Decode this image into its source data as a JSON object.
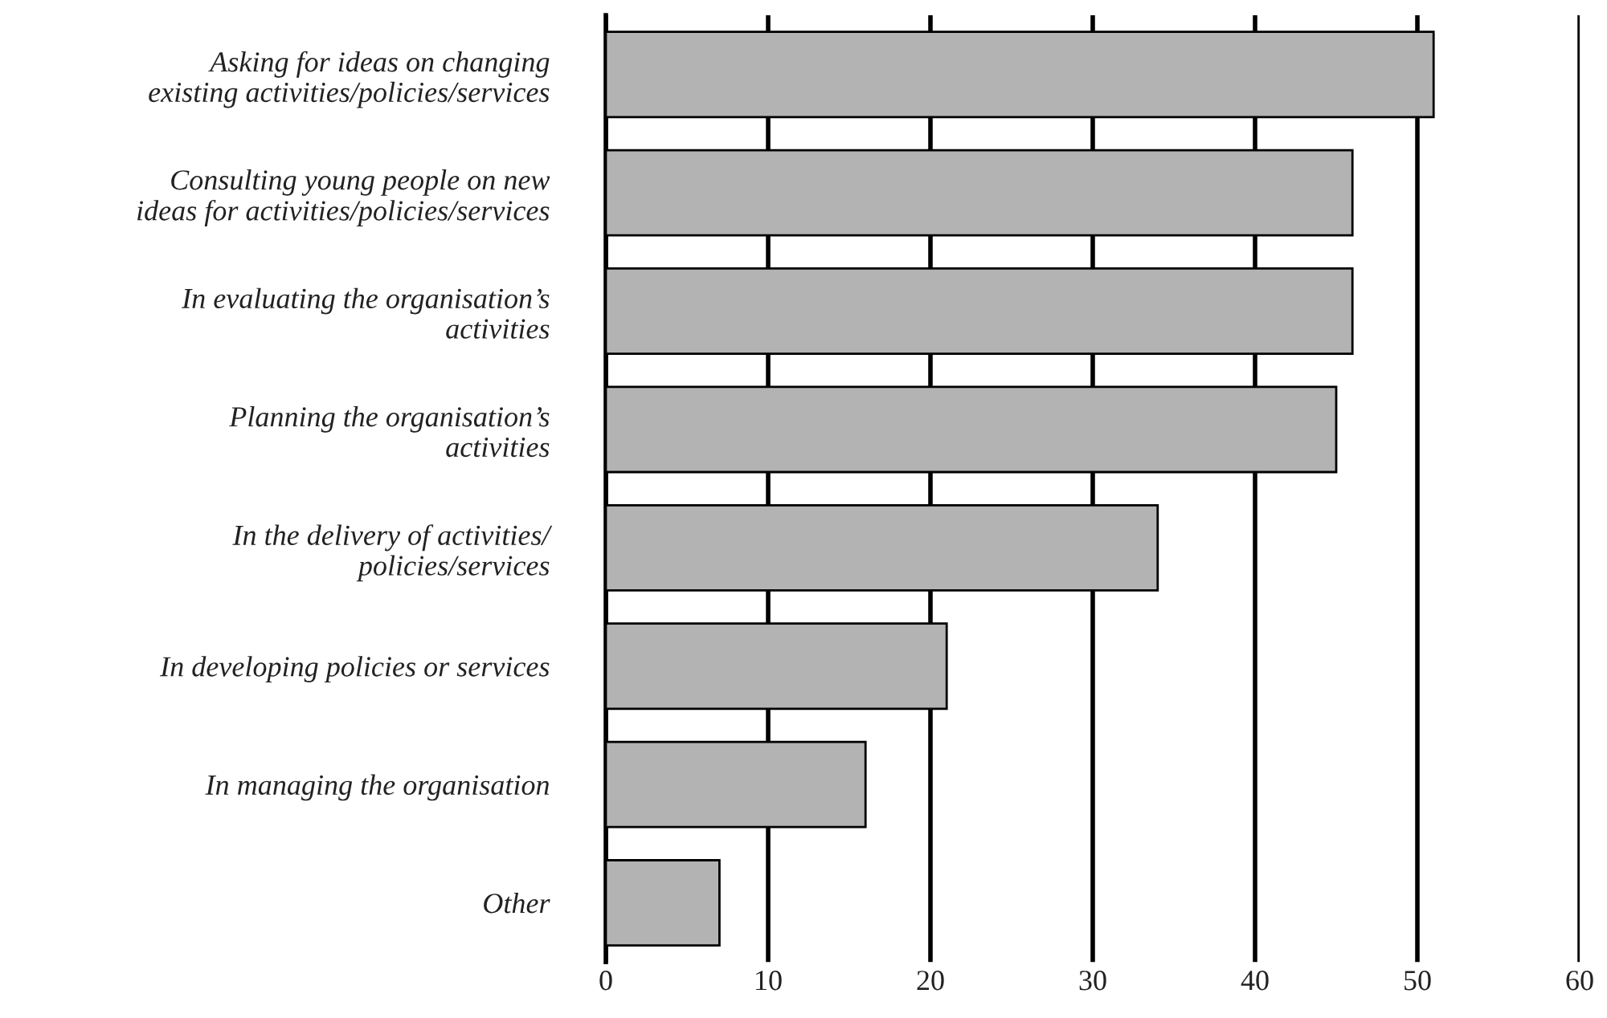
{
  "chart_data": {
    "type": "bar",
    "orientation": "horizontal",
    "categories": [
      "Asking for ideas on changing\nexisting activities/policies/services",
      "Consulting young people on new\nideas for activities/policies/services",
      "In evaluating the organisation’s\nactivities",
      "Planning the organisation’s\nactivities",
      "In the delivery of activities/\npolicies/services",
      "In developing policies or services",
      "In managing the organisation",
      "Other"
    ],
    "values": [
      51,
      46,
      46,
      45,
      34,
      21,
      16,
      7
    ],
    "color": "#b3b3b3",
    "xlim": [
      0,
      60
    ],
    "xticks": [
      0,
      10,
      20,
      30,
      40,
      50,
      60
    ],
    "grid": "x",
    "legend": false
  }
}
